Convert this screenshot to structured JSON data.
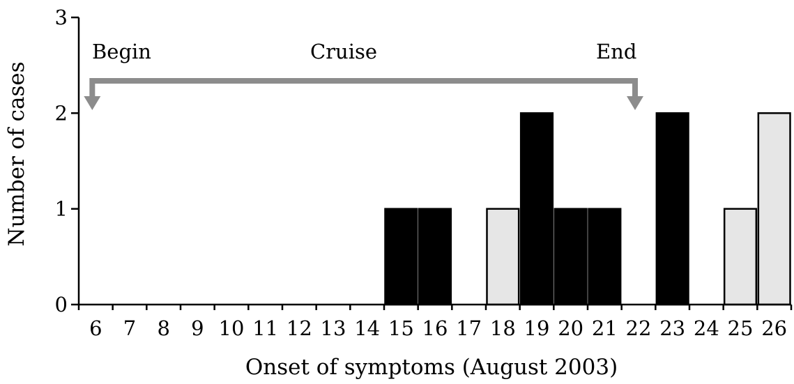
{
  "chart_data": {
    "type": "bar",
    "xlabel": "Onset of symptoms (August 2003)",
    "ylabel": "Number of cases",
    "ylim": [
      0,
      3
    ],
    "yticks": [
      0,
      1,
      2,
      3
    ],
    "categories": [
      "6",
      "7",
      "8",
      "9",
      "10",
      "11",
      "12",
      "13",
      "14",
      "15",
      "16",
      "17",
      "18",
      "19",
      "20",
      "21",
      "22",
      "23",
      "24",
      "25",
      "26"
    ],
    "series": [
      {
        "color": "#000000",
        "values": [
          0,
          0,
          0,
          0,
          0,
          0,
          0,
          0,
          0,
          1,
          1,
          0,
          0,
          2,
          1,
          1,
          0,
          2,
          0,
          0,
          0
        ]
      },
      {
        "color": "#e6e6e6",
        "values": [
          0,
          0,
          0,
          0,
          0,
          0,
          0,
          0,
          0,
          0,
          0,
          0,
          1,
          0,
          0,
          0,
          0,
          0,
          0,
          1,
          2
        ]
      }
    ],
    "annotations": {
      "begin_label": "Begin",
      "cruise_label": "Cruise",
      "end_label": "End",
      "bracket_color": "#8c8c8c",
      "begin_category": "6",
      "end_category": "22"
    },
    "grid": false,
    "legend": "none"
  }
}
